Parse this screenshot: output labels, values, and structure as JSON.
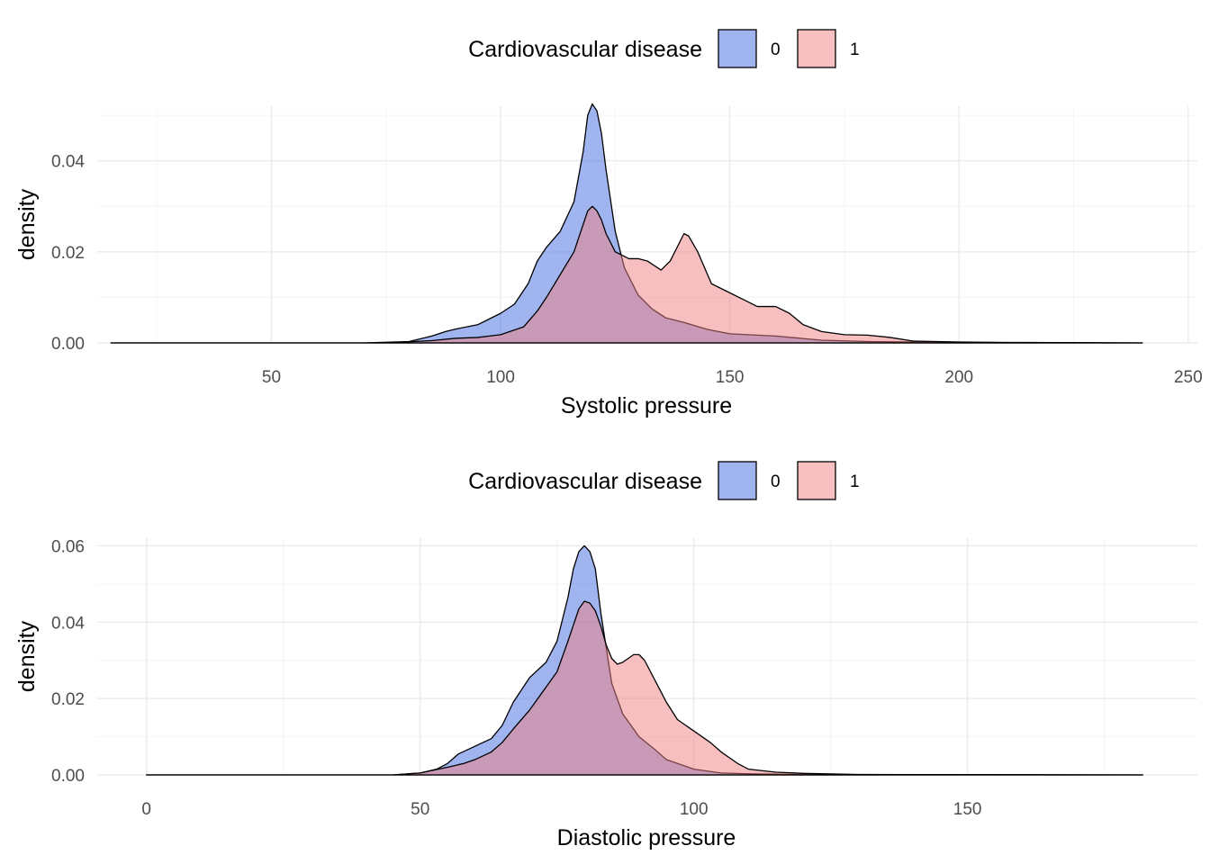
{
  "colors": {
    "group_0": "#4169e1",
    "group_1": "#f08080",
    "fill_alpha": 0.5
  },
  "chart_data": [
    {
      "type": "area",
      "subtype": "density",
      "xlabel": "Systolic pressure",
      "ylabel": "density",
      "legend": {
        "title": "Cardiovascular disease",
        "position": "top",
        "entries": [
          "0",
          "1"
        ]
      },
      "xlim": [
        12,
        252
      ],
      "ylim": [
        0,
        0.052
      ],
      "xticks": [
        50,
        100,
        150,
        200,
        250
      ],
      "xtick_labels": [
        "50",
        "100",
        "150",
        "200",
        "250"
      ],
      "yticks": [
        0,
        0.02,
        0.04
      ],
      "ytick_labels": [
        "0.00",
        "0.02",
        "0.04"
      ],
      "grid": true,
      "series": [
        {
          "name": "0",
          "x": [
            15,
            70,
            80,
            85,
            88,
            90,
            95,
            100,
            103,
            106,
            108,
            110,
            113,
            116,
            118,
            119,
            120,
            121,
            122,
            123,
            125,
            127,
            130,
            133,
            136,
            140,
            145,
            150,
            160,
            170,
            180,
            200,
            240
          ],
          "y": [
            0,
            0,
            0.0003,
            0.0015,
            0.0025,
            0.003,
            0.004,
            0.0065,
            0.0085,
            0.013,
            0.018,
            0.021,
            0.0245,
            0.031,
            0.042,
            0.05,
            0.0525,
            0.051,
            0.046,
            0.038,
            0.0245,
            0.0165,
            0.0105,
            0.0075,
            0.0055,
            0.0045,
            0.003,
            0.002,
            0.0015,
            0.0006,
            0.0003,
            0.0001,
            0
          ]
        },
        {
          "name": "1",
          "x": [
            15,
            75,
            85,
            90,
            95,
            100,
            105,
            108,
            110,
            113,
            116,
            118,
            119,
            120,
            121,
            122,
            123,
            125,
            128,
            130,
            132,
            135,
            137,
            139,
            140,
            141,
            143,
            146,
            150,
            153,
            156,
            160,
            163,
            166,
            170,
            175,
            180,
            185,
            190,
            200,
            210,
            240
          ],
          "y": [
            0,
            0,
            0.0005,
            0.001,
            0.0012,
            0.0018,
            0.0035,
            0.007,
            0.01,
            0.015,
            0.02,
            0.026,
            0.029,
            0.03,
            0.029,
            0.027,
            0.024,
            0.02,
            0.0185,
            0.0185,
            0.018,
            0.016,
            0.018,
            0.022,
            0.024,
            0.0235,
            0.02,
            0.013,
            0.011,
            0.0095,
            0.008,
            0.008,
            0.0065,
            0.004,
            0.0025,
            0.0018,
            0.0017,
            0.0012,
            0.0004,
            0.0002,
            0.0001,
            0
          ]
        }
      ]
    },
    {
      "type": "area",
      "subtype": "density",
      "xlabel": "Diastolic pressure",
      "ylabel": "density",
      "legend": {
        "title": "Cardiovascular disease",
        "position": "top",
        "entries": [
          "0",
          "1"
        ]
      },
      "xlim": [
        -9,
        192
      ],
      "ylim": [
        0,
        0.062
      ],
      "xticks": [
        0,
        50,
        100,
        150
      ],
      "xtick_labels": [
        "0",
        "50",
        "100",
        "150"
      ],
      "yticks": [
        0,
        0.02,
        0.04,
        0.06
      ],
      "ytick_labels": [
        "0.00",
        "0.02",
        "0.04",
        "0.06"
      ],
      "grid": true,
      "series": [
        {
          "name": "0",
          "x": [
            0,
            45,
            50,
            53,
            55,
            57,
            60,
            63,
            65,
            67,
            70,
            73,
            75,
            77,
            78,
            79,
            80,
            81,
            82,
            83,
            85,
            87,
            90,
            93,
            95,
            100,
            105,
            110,
            120,
            182
          ],
          "y": [
            0,
            0,
            0.0005,
            0.0015,
            0.003,
            0.0055,
            0.0075,
            0.0095,
            0.013,
            0.019,
            0.0255,
            0.0295,
            0.035,
            0.0465,
            0.054,
            0.0585,
            0.06,
            0.0585,
            0.054,
            0.0425,
            0.024,
            0.016,
            0.01,
            0.0065,
            0.004,
            0.0015,
            0.0005,
            0.0003,
            0.0001,
            0
          ]
        },
        {
          "name": "1",
          "x": [
            0,
            45,
            50,
            55,
            58,
            60,
            63,
            65,
            67,
            70,
            73,
            75,
            77,
            79,
            80,
            81,
            82,
            83,
            84,
            85,
            86,
            87,
            88,
            89,
            90,
            91,
            93,
            95,
            97,
            100,
            103,
            105,
            108,
            110,
            115,
            120,
            130,
            182
          ],
          "y": [
            0,
            0,
            0.0005,
            0.002,
            0.003,
            0.004,
            0.006,
            0.0085,
            0.012,
            0.017,
            0.023,
            0.027,
            0.035,
            0.0435,
            0.0455,
            0.045,
            0.043,
            0.039,
            0.034,
            0.0305,
            0.029,
            0.0295,
            0.0305,
            0.0315,
            0.0315,
            0.03,
            0.0245,
            0.019,
            0.0145,
            0.0115,
            0.0085,
            0.006,
            0.003,
            0.0015,
            0.0007,
            0.0004,
            0.0001,
            0
          ]
        }
      ]
    }
  ]
}
